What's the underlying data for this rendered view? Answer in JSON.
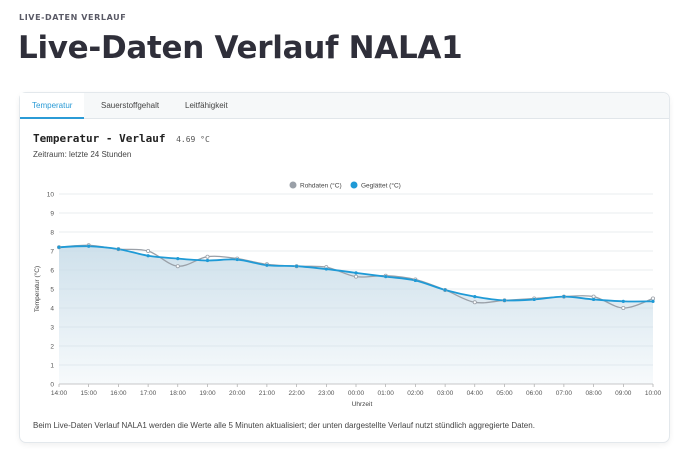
{
  "page": {
    "eyebrow": "LIVE-DATEN VERLAUF",
    "title": "Live-Daten Verlauf NALA1"
  },
  "tabs": [
    {
      "label": "Temperatur",
      "active": true
    },
    {
      "label": "Sauerstoffgehalt",
      "active": false
    },
    {
      "label": "Leitfähigkeit",
      "active": false
    }
  ],
  "panel": {
    "title": "Temperatur - Verlauf",
    "current_value": "4.69 °C",
    "subtitle": "Zeitraum: letzte 24 Stunden",
    "footnote": "Beim Live-Daten Verlauf NALA1 werden die Werte alle 5 Minuten aktualisiert; der unten dargestellte Verlauf nutzt stündlich aggregierte Daten."
  },
  "colors": {
    "accent": "#2b9bd6",
    "raw_series": "#9aa0a8",
    "smoothed_series": "#1f9ad6",
    "area_fill": "#c9dde9"
  },
  "chart_data": {
    "type": "line",
    "xlabel": "Uhrzeit",
    "ylabel": "Temperatur (°C)",
    "ylim": [
      0,
      10
    ],
    "yticks": [
      "0",
      "1",
      "2",
      "3",
      "4",
      "5",
      "6",
      "7",
      "8",
      "9",
      "10"
    ],
    "x": [
      "14:00",
      "15:00",
      "16:00",
      "17:00",
      "18:00",
      "19:00",
      "20:00",
      "21:00",
      "22:00",
      "23:00",
      "00:00",
      "01:00",
      "02:00",
      "03:00",
      "04:00",
      "05:00",
      "06:00",
      "07:00",
      "08:00",
      "09:00",
      "10:00"
    ],
    "grid": true,
    "legend": "top-center",
    "series": [
      {
        "name": "Rohdaten (°C)",
        "values": [
          7.2,
          7.3,
          7.1,
          7.0,
          6.2,
          6.7,
          6.6,
          6.3,
          6.2,
          6.15,
          5.65,
          5.7,
          5.5,
          4.95,
          4.3,
          4.4,
          4.5,
          4.6,
          4.6,
          4.0,
          4.5
        ]
      },
      {
        "name": "Geglättet (°C)",
        "values": [
          7.2,
          7.25,
          7.1,
          6.75,
          6.6,
          6.5,
          6.55,
          6.25,
          6.2,
          6.05,
          5.85,
          5.65,
          5.45,
          4.95,
          4.6,
          4.4,
          4.45,
          4.6,
          4.45,
          4.35,
          4.35
        ]
      }
    ]
  }
}
